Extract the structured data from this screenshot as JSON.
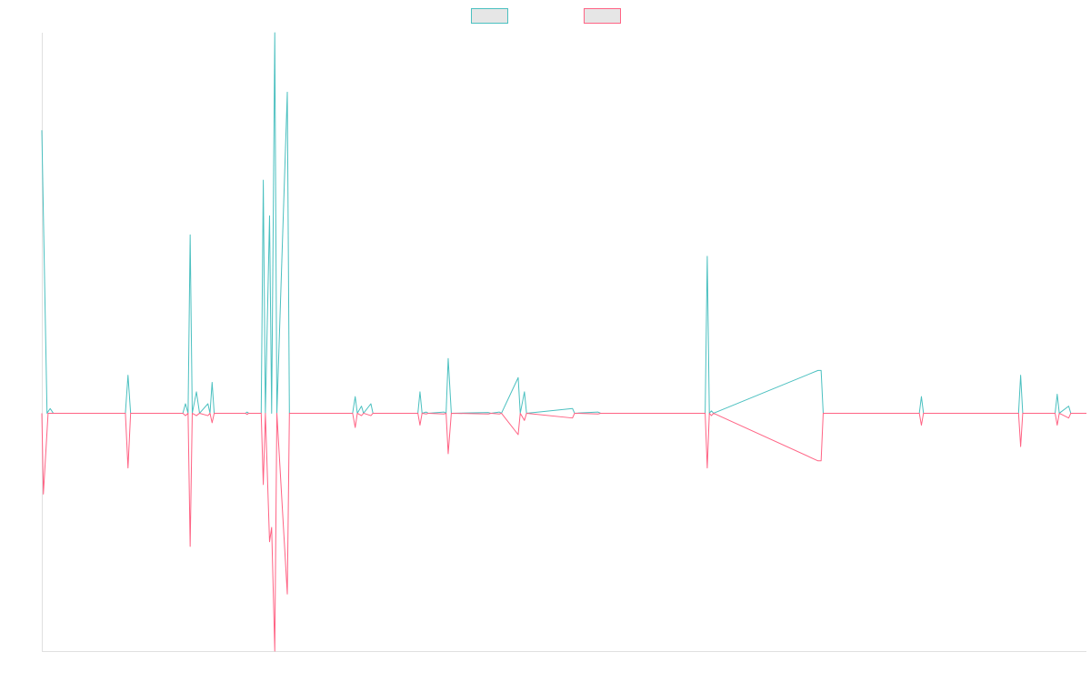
{
  "colors": {
    "series_up": "#4bc0c0",
    "series_down": "#ff6384",
    "legend_fill": "#e6e6e6",
    "axis": "#e0e0e0",
    "background": "#ffffff"
  },
  "chart_data": {
    "type": "line",
    "title": "",
    "xlabel": "",
    "ylabel": "",
    "grid": false,
    "legend_position": "top",
    "xlim": [
      0,
      200
    ],
    "ylim": [
      -100,
      160
    ],
    "series": [
      {
        "color": "#4bc0c0",
        "legend_swatch_fill": "#e6e6e6",
        "points": [
          [
            0,
            119
          ],
          [
            1,
            0
          ],
          [
            1.6,
            2
          ],
          [
            2.2,
            0
          ],
          [
            16,
            0
          ],
          [
            16.5,
            16
          ],
          [
            17,
            0
          ],
          [
            27,
            0
          ],
          [
            27.5,
            4
          ],
          [
            28,
            0
          ],
          [
            28.4,
            75
          ],
          [
            28.8,
            0
          ],
          [
            29.6,
            9
          ],
          [
            30.2,
            0
          ],
          [
            31.8,
            4
          ],
          [
            32.2,
            0
          ],
          [
            32.6,
            13
          ],
          [
            33,
            0
          ],
          [
            39,
            0
          ],
          [
            39.3,
            0.5
          ],
          [
            39.6,
            0
          ],
          [
            42,
            0
          ],
          [
            42.4,
            98
          ],
          [
            42.8,
            0
          ],
          [
            43.6,
            83
          ],
          [
            44,
            0
          ],
          [
            44.6,
            160
          ],
          [
            45,
            0
          ],
          [
            47,
            135
          ],
          [
            47.4,
            0
          ],
          [
            59.5,
            0
          ],
          [
            60,
            7
          ],
          [
            60.4,
            0
          ],
          [
            61.2,
            3
          ],
          [
            61.6,
            0
          ],
          [
            63,
            4
          ],
          [
            63.4,
            0
          ],
          [
            72,
            0
          ],
          [
            72.4,
            9
          ],
          [
            72.8,
            0
          ],
          [
            73.6,
            0.5
          ],
          [
            74,
            0
          ],
          [
            77,
            0.5
          ],
          [
            77.4,
            0
          ],
          [
            77.8,
            23
          ],
          [
            78.4,
            0
          ],
          [
            85.5,
            0.3
          ],
          [
            86,
            0
          ],
          [
            87.6,
            0.5
          ],
          [
            88,
            0
          ],
          [
            91.2,
            15
          ],
          [
            91.6,
            0
          ],
          [
            92.4,
            9
          ],
          [
            92.8,
            0
          ],
          [
            101.6,
            2
          ],
          [
            102,
            0
          ],
          [
            106.5,
            0.5
          ],
          [
            107,
            0
          ],
          [
            127,
            0
          ],
          [
            127.4,
            66
          ],
          [
            127.8,
            0
          ],
          [
            128.2,
            1
          ],
          [
            128.6,
            0
          ],
          [
            148.6,
            18
          ],
          [
            149.2,
            18
          ],
          [
            149.6,
            0
          ],
          [
            168,
            0
          ],
          [
            168.4,
            7
          ],
          [
            168.8,
            0
          ],
          [
            187,
            0
          ],
          [
            187.4,
            16
          ],
          [
            187.8,
            0
          ],
          [
            194,
            0
          ],
          [
            194.4,
            8
          ],
          [
            194.8,
            0
          ],
          [
            196.6,
            3
          ],
          [
            197,
            0
          ],
          [
            200,
            0
          ]
        ]
      },
      {
        "color": "#ff6384",
        "legend_swatch_fill": "#e6e6e6",
        "points": [
          [
            0,
            0
          ],
          [
            0.3,
            -34
          ],
          [
            1.2,
            0
          ],
          [
            16,
            0
          ],
          [
            16.5,
            -23
          ],
          [
            17,
            0
          ],
          [
            27,
            0
          ],
          [
            27.5,
            -1
          ],
          [
            28,
            0
          ],
          [
            28.4,
            -56
          ],
          [
            28.8,
            0
          ],
          [
            29.6,
            -1
          ],
          [
            30.2,
            0
          ],
          [
            31.8,
            -1
          ],
          [
            32.2,
            0
          ],
          [
            32.6,
            -4
          ],
          [
            33,
            0
          ],
          [
            39,
            0
          ],
          [
            39.3,
            -0.5
          ],
          [
            39.6,
            0
          ],
          [
            42,
            0
          ],
          [
            42.4,
            -30
          ],
          [
            42.8,
            0
          ],
          [
            43.6,
            -54
          ],
          [
            44,
            -48
          ],
          [
            44.6,
            -100
          ],
          [
            45,
            0
          ],
          [
            47,
            -76
          ],
          [
            47.4,
            0
          ],
          [
            59.5,
            0
          ],
          [
            60,
            -6
          ],
          [
            60.4,
            0
          ],
          [
            61.2,
            -1
          ],
          [
            61.6,
            0
          ],
          [
            63,
            -1
          ],
          [
            63.4,
            0
          ],
          [
            72,
            0
          ],
          [
            72.4,
            -5
          ],
          [
            72.8,
            0
          ],
          [
            73.6,
            -0.3
          ],
          [
            74,
            0
          ],
          [
            77,
            -0.3
          ],
          [
            77.4,
            0
          ],
          [
            77.8,
            -17
          ],
          [
            78.4,
            0
          ],
          [
            85.5,
            -0.3
          ],
          [
            86,
            0
          ],
          [
            87.6,
            -0.3
          ],
          [
            88,
            0
          ],
          [
            91.2,
            -9
          ],
          [
            91.6,
            0
          ],
          [
            92.4,
            -3
          ],
          [
            92.8,
            0
          ],
          [
            101.6,
            -2
          ],
          [
            102,
            0
          ],
          [
            106.5,
            -0.3
          ],
          [
            107,
            0
          ],
          [
            127,
            0
          ],
          [
            127.4,
            -23
          ],
          [
            127.8,
            0
          ],
          [
            128.2,
            -1
          ],
          [
            128.6,
            0
          ],
          [
            148.6,
            -20
          ],
          [
            149.2,
            -20
          ],
          [
            149.6,
            0
          ],
          [
            168,
            0
          ],
          [
            168.4,
            -5
          ],
          [
            168.8,
            0
          ],
          [
            187,
            0
          ],
          [
            187.4,
            -14
          ],
          [
            187.8,
            0
          ],
          [
            194,
            0
          ],
          [
            194.4,
            -5
          ],
          [
            194.8,
            0
          ],
          [
            196.6,
            -2
          ],
          [
            197,
            0
          ],
          [
            200,
            0
          ]
        ]
      }
    ]
  }
}
